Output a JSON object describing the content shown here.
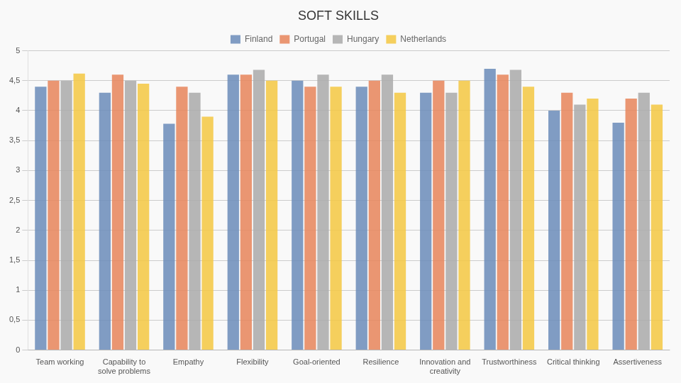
{
  "chart_data": {
    "type": "bar",
    "title": "SOFT SKILLS",
    "categories": [
      "Team working",
      "Capability to\nsolve problems",
      "Empathy",
      "Flexibility",
      "Goal-oriented",
      "Resilience",
      "Innovation and\ncreativity",
      "Trustworthiness",
      "Critical thinking",
      "Assertiveness"
    ],
    "series": [
      {
        "name": "Finland",
        "color": "#6b8cba",
        "values": [
          4.4,
          4.3,
          3.78,
          4.6,
          4.5,
          4.4,
          4.3,
          4.7,
          4.0,
          3.8
        ]
      },
      {
        "name": "Portugal",
        "color": "#e8855a",
        "values": [
          4.5,
          4.6,
          4.4,
          4.6,
          4.4,
          4.5,
          4.5,
          4.6,
          4.3,
          4.2
        ]
      },
      {
        "name": "Hungary",
        "color": "#aaaaaa",
        "values": [
          4.5,
          4.5,
          4.3,
          4.68,
          4.6,
          4.6,
          4.3,
          4.68,
          4.1,
          4.3
        ]
      },
      {
        "name": "Netherlands",
        "color": "#f5c842",
        "values": [
          4.62,
          4.45,
          3.9,
          4.5,
          4.4,
          4.3,
          4.5,
          4.4,
          4.2,
          4.1
        ]
      }
    ],
    "ylim": [
      0,
      5
    ],
    "yticks": [
      0,
      {
        "value": 0.5,
        "label": "0,5"
      },
      1,
      {
        "value": 1.5,
        "label": "1,5"
      },
      2,
      {
        "value": 2.5,
        "label": "2,5"
      },
      3,
      {
        "value": 3.5,
        "label": "3,5"
      },
      4,
      {
        "value": 4.5,
        "label": "4,5"
      },
      5
    ],
    "grid": true,
    "legend": "top"
  }
}
